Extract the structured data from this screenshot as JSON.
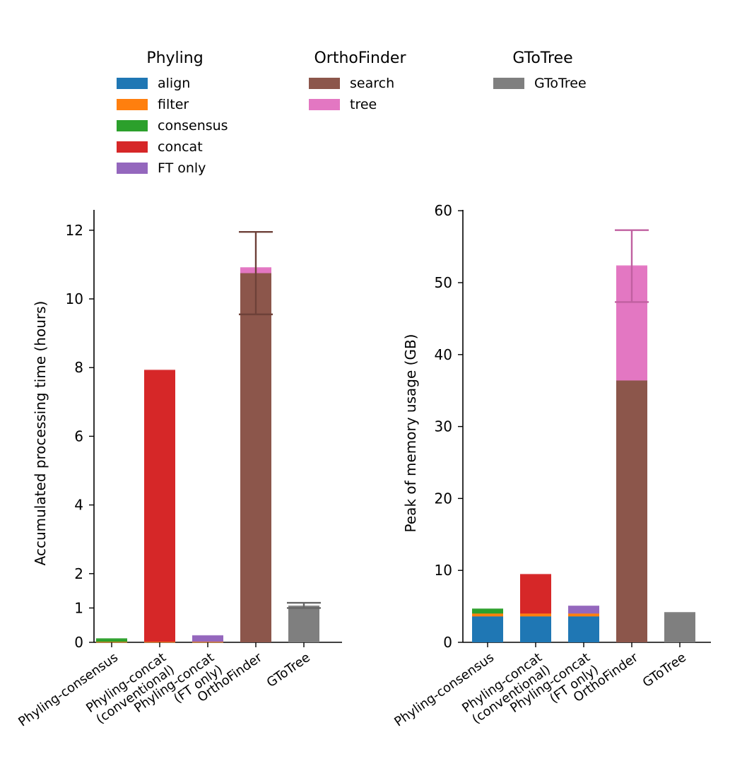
{
  "legend": {
    "groups": [
      {
        "title": "Phyling",
        "items": [
          {
            "label": "align",
            "color": "#1f77b4"
          },
          {
            "label": "filter",
            "color": "#ff7f0e"
          },
          {
            "label": "consensus",
            "color": "#2ca02c"
          },
          {
            "label": "concat",
            "color": "#d62728"
          },
          {
            "label": "FT only",
            "color": "#9467bd"
          }
        ]
      },
      {
        "title": "OrthoFinder",
        "items": [
          {
            "label": "search",
            "color": "#8c564b"
          },
          {
            "label": "tree",
            "color": "#e377c2"
          }
        ]
      },
      {
        "title": "GToTree",
        "items": [
          {
            "label": "GToTree",
            "color": "#7f7f7f"
          }
        ]
      }
    ]
  },
  "chart_data": [
    {
      "type": "bar",
      "stacked": true,
      "ylabel": "Accumulated processing time (hours)",
      "ylim": [
        0,
        12.6
      ],
      "yticks": [
        0,
        1,
        2,
        4,
        6,
        8,
        10,
        12
      ],
      "categories": [
        "Phyling-consensus",
        "Phyling-concat\n(conventional)",
        "Phyling-concat\n(FT only)",
        "OrthoFinder",
        "GToTree"
      ],
      "series": [
        {
          "name": "align",
          "color": "#1f77b4",
          "values": [
            0.01,
            0.01,
            0.01,
            0,
            0
          ]
        },
        {
          "name": "filter",
          "color": "#ff7f0e",
          "values": [
            0.005,
            0.005,
            0.005,
            0,
            0
          ]
        },
        {
          "name": "consensus",
          "color": "#2ca02c",
          "values": [
            0.08,
            0,
            0,
            0,
            0
          ]
        },
        {
          "name": "concat",
          "color": "#d62728",
          "values": [
            0,
            7.9,
            0,
            0,
            0
          ]
        },
        {
          "name": "FT only",
          "color": "#9467bd",
          "values": [
            0,
            0,
            0.17,
            0,
            0
          ]
        },
        {
          "name": "search",
          "color": "#8c564b",
          "values": [
            0,
            0,
            0,
            10.75,
            0
          ]
        },
        {
          "name": "tree",
          "color": "#e377c2",
          "values": [
            0,
            0,
            0,
            0.15,
            0
          ]
        },
        {
          "name": "GToTree",
          "color": "#7f7f7f",
          "values": [
            0,
            0,
            0,
            0,
            1.05
          ]
        }
      ],
      "error_bars": [
        {
          "category_index": 3,
          "value": 10.75,
          "low": 9.55,
          "high": 11.95,
          "color": "#6e4139"
        },
        {
          "category_index": 4,
          "value": 1.05,
          "low": 1.0,
          "high": 1.15,
          "color": "#666666"
        }
      ]
    },
    {
      "type": "bar",
      "stacked": true,
      "ylabel": "Peak of memory usage (GB)",
      "ylim": [
        0,
        60
      ],
      "yticks": [
        0,
        10,
        20,
        30,
        40,
        50,
        60
      ],
      "categories": [
        "Phyling-consensus",
        "Phyling-concat\n(conventional)",
        "Phyling-concat\n(FT only)",
        "OrthoFinder",
        "GToTree"
      ],
      "series": [
        {
          "name": "align",
          "color": "#1f77b4",
          "values": [
            3.6,
            3.6,
            3.6,
            0,
            0
          ]
        },
        {
          "name": "filter",
          "color": "#ff7f0e",
          "values": [
            0.4,
            0.4,
            0.4,
            0,
            0
          ]
        },
        {
          "name": "consensus",
          "color": "#2ca02c",
          "values": [
            0.6,
            0,
            0,
            0,
            0
          ]
        },
        {
          "name": "concat",
          "color": "#d62728",
          "values": [
            0,
            5.4,
            0,
            0,
            0
          ]
        },
        {
          "name": "FT only",
          "color": "#9467bd",
          "values": [
            0,
            0,
            1.0,
            0,
            0
          ]
        },
        {
          "name": "search",
          "color": "#8c564b",
          "values": [
            0,
            0,
            0,
            36.4,
            0
          ]
        },
        {
          "name": "tree",
          "color": "#e377c2",
          "values": [
            0,
            0,
            0,
            15.9,
            0
          ]
        },
        {
          "name": "GToTree",
          "color": "#7f7f7f",
          "values": [
            0,
            0,
            0,
            0,
            4.1
          ]
        }
      ],
      "error_bars": [
        {
          "category_index": 3,
          "value": 52.3,
          "low": 47.3,
          "high": 57.3,
          "color": "#c060a0"
        }
      ]
    }
  ]
}
